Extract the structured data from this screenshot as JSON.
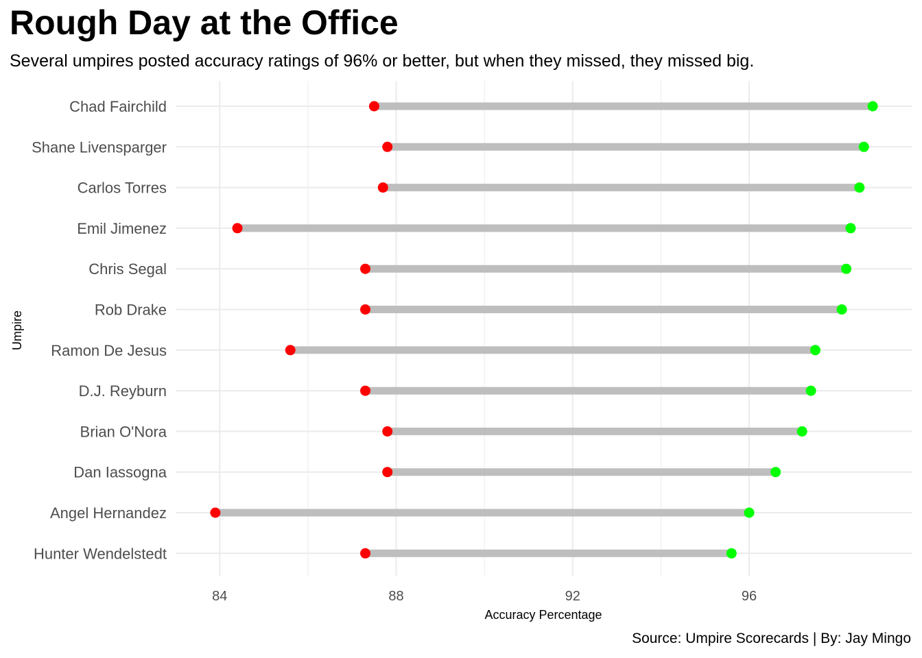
{
  "header": {
    "title": "Rough Day at the Office",
    "subtitle": "Several umpires posted accuracy ratings of 96% or better, but when they missed, they missed big.",
    "caption": "Source: Umpire Scorecards | By: Jay Mingo"
  },
  "chart_data": {
    "type": "dumbbell",
    "xlabel": "Accuracy Percentage",
    "ylabel": "Umpire",
    "xlim": [
      83.0,
      99.7
    ],
    "x_ticks": [
      84,
      88,
      92,
      96
    ],
    "x_tick_labels": [
      "84",
      "88",
      "92",
      "96"
    ],
    "grid": "on",
    "legend": "none",
    "colors": {
      "low": "#ff0000",
      "high": "#00ff00",
      "segment": "#bebebe",
      "grid": "#ebebeb"
    },
    "categories": [
      "Chad Fairchild",
      "Shane Livensparger",
      "Carlos Torres",
      "Emil Jimenez",
      "Chris Segal",
      "Rob Drake",
      "Ramon De Jesus",
      "D.J. Reyburn",
      "Brian O'Nora",
      "Dan Iassogna",
      "Angel Hernandez",
      "Hunter Wendelstedt"
    ],
    "series": [
      {
        "values": [
          87.5,
          87.8,
          87.7,
          84.4,
          87.3,
          87.3,
          85.6,
          87.3,
          87.8,
          87.8,
          83.9,
          87.3
        ]
      },
      {
        "values": [
          98.8,
          98.6,
          98.5,
          98.3,
          98.2,
          98.1,
          97.5,
          97.4,
          97.2,
          96.6,
          96.0,
          95.6
        ]
      }
    ]
  }
}
